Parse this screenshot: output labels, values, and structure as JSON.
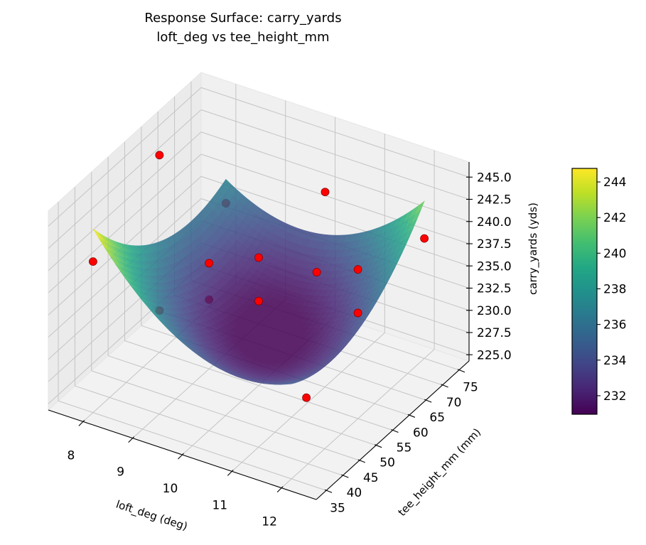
{
  "chart_data": {
    "type": "surface",
    "title": "Response Surface: carry_yards",
    "subtitle": "loft_deg vs tee_height_mm",
    "xlabel": "loft_deg (deg)",
    "ylabel": "tee_height_mm (mm)",
    "zlabel": "carry_yards (yds)",
    "xlim": [
      7.3,
      12.7
    ],
    "ylim": [
      32,
      78
    ],
    "zlim": [
      224.3,
      246.7
    ],
    "xticks": [
      "8",
      "9",
      "10",
      "11",
      "12"
    ],
    "yticks": [
      "35",
      "40",
      "45",
      "50",
      "55",
      "60",
      "65",
      "70",
      "75"
    ],
    "zticks": [
      "225.0",
      "227.5",
      "230.0",
      "232.5",
      "235.0",
      "237.5",
      "240.0",
      "242.5",
      "245.0"
    ],
    "grid": true,
    "colormap": "viridis",
    "surface": {
      "x": [
        8,
        9,
        10,
        11,
        12
      ],
      "y": [
        35,
        45,
        55,
        65,
        75
      ],
      "z": [
        [
          245.0,
          239.81,
          236.75,
          235.81,
          237.0
        ],
        [
          238.75,
          234.5,
          232.38,
          232.38,
          234.5
        ],
        [
          235.0,
          231.69,
          230.5,
          231.44,
          234.5
        ],
        [
          233.75,
          231.38,
          231.13,
          233.0,
          237.0
        ],
        [
          235.0,
          233.56,
          234.25,
          237.06,
          242.0
        ]
      ]
    },
    "points": [
      {
        "x": 8,
        "y": 35,
        "z": 241.3
      },
      {
        "x": 8,
        "y": 55,
        "z": 246.5
      },
      {
        "x": 8,
        "y": 75,
        "z": 234.3
      },
      {
        "x": 10,
        "y": 75,
        "z": 239.3
      },
      {
        "x": 12,
        "y": 75,
        "z": 237.8
      },
      {
        "x": 8,
        "y": 55,
        "z": 229.0
      },
      {
        "x": 9,
        "y": 55,
        "z": 236.2
      },
      {
        "x": 9,
        "y": 55,
        "z": 232.1
      },
      {
        "x": 10,
        "y": 55,
        "z": 238.7
      },
      {
        "x": 10,
        "y": 55,
        "z": 233.8
      },
      {
        "x": 10.5,
        "y": 65,
        "z": 234.6
      },
      {
        "x": 12,
        "y": 55,
        "z": 241.1
      },
      {
        "x": 12,
        "y": 55,
        "z": 236.2
      },
      {
        "x": 12.3,
        "y": 35,
        "z": 234.0
      }
    ],
    "point_color": "#ff0000",
    "colorbar": {
      "range": [
        230.96,
        244.76
      ],
      "ticks": [
        "232",
        "234",
        "236",
        "238",
        "240",
        "242",
        "244"
      ]
    }
  }
}
